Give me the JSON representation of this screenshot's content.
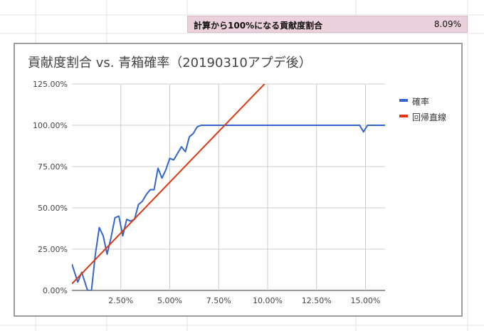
{
  "sheet": {
    "header_label": "計算から100%になる貢献度割合",
    "header_value": "8.09%"
  },
  "chart_data": {
    "type": "line",
    "title": "貢献度割合 vs. 青箱確率（20190310アプデ後）",
    "xlabel": "",
    "ylabel": "",
    "xlim": [
      0.0,
      0.16
    ],
    "ylim": [
      0,
      125
    ],
    "x_ticks": [
      "2.50%",
      "5.00%",
      "7.50%",
      "10.00%",
      "12.50%",
      "15.00%"
    ],
    "x_tick_values": [
      0.025,
      0.05,
      0.075,
      0.1,
      0.125,
      0.15
    ],
    "y_ticks": [
      "0.00%",
      "25.00%",
      "50.00%",
      "75.00%",
      "100.00%",
      "125.00%"
    ],
    "y_tick_values": [
      0,
      25,
      50,
      75,
      100,
      125
    ],
    "grid": true,
    "legend_position": "right",
    "series": [
      {
        "name": "確率",
        "color": "#3366cc",
        "x": [
          0.0,
          0.003,
          0.005,
          0.008,
          0.01,
          0.012,
          0.014,
          0.016,
          0.018,
          0.02,
          0.022,
          0.024,
          0.026,
          0.028,
          0.03,
          0.032,
          0.034,
          0.036,
          0.038,
          0.04,
          0.042,
          0.044,
          0.046,
          0.048,
          0.05,
          0.052,
          0.054,
          0.056,
          0.058,
          0.06,
          0.062,
          0.064,
          0.066,
          0.068,
          0.07,
          0.072,
          0.074,
          0.076,
          0.078,
          0.08,
          0.09,
          0.1,
          0.11,
          0.12,
          0.13,
          0.14,
          0.147,
          0.149,
          0.151,
          0.16
        ],
        "values": [
          16,
          5,
          11,
          0,
          0,
          22,
          38,
          33,
          22,
          32,
          44,
          45,
          33,
          43,
          42,
          43,
          52,
          54,
          58,
          61,
          61,
          74,
          68,
          73,
          80,
          79,
          83,
          87,
          84,
          93,
          95,
          99,
          100,
          100,
          100,
          100,
          100,
          100,
          100,
          100,
          100,
          100,
          100,
          100,
          100,
          100,
          100,
          96,
          100,
          100
        ]
      },
      {
        "name": "回帰直線",
        "color": "#dc3912",
        "x": [
          0.0,
          0.1
        ],
        "values": [
          4,
          127
        ]
      }
    ]
  }
}
